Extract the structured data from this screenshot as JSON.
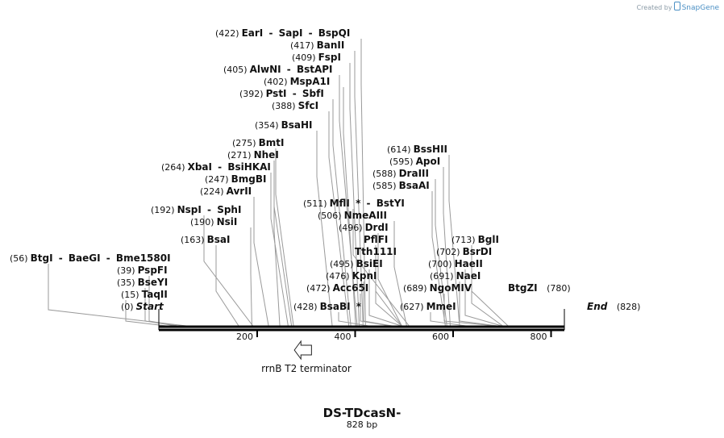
{
  "credit": {
    "prefix": "Created by",
    "brand": "SnapGene"
  },
  "sequence": {
    "name": "DS-TDcasN-",
    "length_label": "828 bp",
    "length_bp": 828
  },
  "axis": {
    "ticks": [
      200,
      400,
      600,
      800
    ]
  },
  "feature": {
    "name": "rrnB T2 terminator",
    "start": 285,
    "end": 315,
    "direction": "left"
  },
  "enzyme_groups": [
    {
      "pos": "(0)",
      "enzymes": [
        {
          "name": "Start",
          "cut": 0,
          "terminal": true
        }
      ]
    },
    {
      "pos": "(15)",
      "enzymes": [
        {
          "name": "TaqII",
          "cut": 15
        }
      ]
    },
    {
      "pos": "(35)",
      "enzymes": [
        {
          "name": "BseYI",
          "cut": 35
        }
      ]
    },
    {
      "pos": "(39)",
      "enzymes": [
        {
          "name": "PspFI",
          "cut": 39
        }
      ]
    },
    {
      "pos": "(56)",
      "enzymes": [
        {
          "name": "BtgI",
          "cut": 56
        },
        {
          "name": "BaeGI",
          "cut": 56
        },
        {
          "name": "Bme1580I",
          "cut": 56
        }
      ]
    },
    {
      "pos": "(163)",
      "enzymes": [
        {
          "name": "BsaI",
          "cut": 163
        }
      ]
    },
    {
      "pos": "(190)",
      "enzymes": [
        {
          "name": "NsiI",
          "cut": 190
        }
      ]
    },
    {
      "pos": "(192)",
      "enzymes": [
        {
          "name": "NspI",
          "cut": 192
        },
        {
          "name": "SphI",
          "cut": 192
        }
      ]
    },
    {
      "pos": "(224)",
      "enzymes": [
        {
          "name": "AvrII",
          "cut": 224
        }
      ]
    },
    {
      "pos": "(247)",
      "enzymes": [
        {
          "name": "BmgBI",
          "cut": 247
        }
      ]
    },
    {
      "pos": "(264)",
      "enzymes": [
        {
          "name": "XbaI",
          "cut": 264
        },
        {
          "name": "BsiHKAI",
          "cut": 264
        }
      ]
    },
    {
      "pos": "(271)",
      "enzymes": [
        {
          "name": "NheI",
          "cut": 271
        }
      ]
    },
    {
      "pos": "(275)",
      "enzymes": [
        {
          "name": "BmtI",
          "cut": 275
        }
      ]
    },
    {
      "pos": "(354)",
      "enzymes": [
        {
          "name": "BsaHI",
          "cut": 354
        }
      ]
    },
    {
      "pos": "(388)",
      "enzymes": [
        {
          "name": "SfcI",
          "cut": 388
        }
      ]
    },
    {
      "pos": "(392)",
      "enzymes": [
        {
          "name": "PstI",
          "cut": 392
        },
        {
          "name": "SbfI",
          "cut": 392
        }
      ]
    },
    {
      "pos": "(402)",
      "enzymes": [
        {
          "name": "MspA1I",
          "cut": 402
        }
      ]
    },
    {
      "pos": "(405)",
      "enzymes": [
        {
          "name": "AlwNI",
          "cut": 405
        },
        {
          "name": "BstAPI",
          "cut": 405
        }
      ]
    },
    {
      "pos": "(409)",
      "enzymes": [
        {
          "name": "FspI",
          "cut": 409
        }
      ]
    },
    {
      "pos": "(417)",
      "enzymes": [
        {
          "name": "BanII",
          "cut": 417
        }
      ]
    },
    {
      "pos": "(422)",
      "enzymes": [
        {
          "name": "EarI",
          "cut": 422
        },
        {
          "name": "SapI",
          "cut": 422
        },
        {
          "name": "BspQI",
          "cut": 422
        }
      ]
    },
    {
      "pos": "(428)",
      "enzymes": [
        {
          "name": "BsaBI",
          "cut": 428,
          "star": true
        }
      ]
    },
    {
      "pos": "(472)",
      "enzymes": [
        {
          "name": "Acc65I",
          "cut": 472
        }
      ]
    },
    {
      "pos": "(476)",
      "enzymes": [
        {
          "name": "KpnI",
          "cut": 476
        }
      ]
    },
    {
      "pos": "(495)",
      "enzymes": [
        {
          "name": "BsiEI",
          "cut": 495
        }
      ]
    },
    {
      "pos": "",
      "enzymes": [
        {
          "name": "Tth111I",
          "cut": 496
        }
      ]
    },
    {
      "pos": "",
      "enzymes": [
        {
          "name": "PflFI",
          "cut": 496
        }
      ]
    },
    {
      "pos": "(496)",
      "enzymes": [
        {
          "name": "DrdI",
          "cut": 496
        }
      ]
    },
    {
      "pos": "(506)",
      "enzymes": [
        {
          "name": "NmeAIII",
          "cut": 506
        }
      ]
    },
    {
      "pos": "(511)",
      "enzymes": [
        {
          "name": "MflI",
          "cut": 511,
          "star": true
        },
        {
          "name": "BstYI",
          "cut": 511
        }
      ]
    },
    {
      "pos": "(585)",
      "enzymes": [
        {
          "name": "BsaAI",
          "cut": 585
        }
      ]
    },
    {
      "pos": "(588)",
      "enzymes": [
        {
          "name": "DraIII",
          "cut": 588
        }
      ]
    },
    {
      "pos": "(595)",
      "enzymes": [
        {
          "name": "ApoI",
          "cut": 595
        }
      ]
    },
    {
      "pos": "(614)",
      "enzymes": [
        {
          "name": "BssHII",
          "cut": 614
        }
      ]
    },
    {
      "pos": "(627)",
      "enzymes": [
        {
          "name": "MmeI",
          "cut": 627
        }
      ]
    },
    {
      "pos": "(689)",
      "enzymes": [
        {
          "name": "NgoMIV",
          "cut": 689
        }
      ]
    },
    {
      "pos": "(691)",
      "enzymes": [
        {
          "name": "NaeI",
          "cut": 691
        }
      ]
    },
    {
      "pos": "(700)",
      "enzymes": [
        {
          "name": "HaeII",
          "cut": 700
        }
      ]
    },
    {
      "pos": "(702)",
      "enzymes": [
        {
          "name": "BsrDI",
          "cut": 702
        }
      ]
    },
    {
      "pos": "(713)",
      "enzymes": [
        {
          "name": "BglI",
          "cut": 713
        }
      ]
    },
    {
      "pos": "(780)",
      "enzymes": [
        {
          "name": "BtgZI",
          "cut": 780
        }
      ]
    },
    {
      "pos": "(828)",
      "enzymes": [
        {
          "name": "End",
          "cut": 828,
          "terminal": true
        }
      ]
    }
  ]
}
